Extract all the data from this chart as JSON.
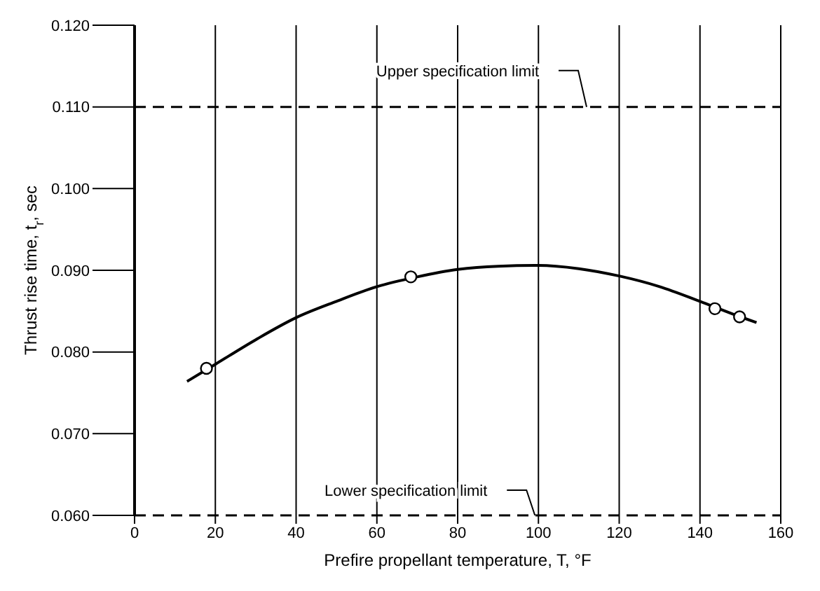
{
  "chart_data": {
    "type": "line",
    "xlabel": "Prefire propellant temperature, T, °F",
    "ylabel": "Thrust rise time, t$_{r}$, sec",
    "xlim": [
      0,
      160
    ],
    "xticks": [
      0,
      20,
      40,
      60,
      80,
      100,
      120,
      140,
      160
    ],
    "ylim": [
      0.06,
      0.12
    ],
    "yticks": [
      {
        "value": 0.06,
        "label": "0.060"
      },
      {
        "value": 0.07,
        "label": "0.070"
      },
      {
        "value": 0.08,
        "label": "0.080"
      },
      {
        "value": 0.09,
        "label": "0.090"
      },
      {
        "value": 0.1,
        "label": "0.100"
      },
      {
        "value": 0.11,
        "label": "0.110"
      },
      {
        "value": 0.12,
        "label": "0.120"
      }
    ],
    "grid": "x",
    "series": [
      {
        "color": "#000000",
        "marker": "none",
        "line_style": "solid",
        "x": [
          13,
          20,
          30,
          40,
          50,
          60,
          70,
          80,
          90,
          100,
          110,
          120,
          130,
          140,
          150,
          154
        ],
        "values": [
          0.0764,
          0.0785,
          0.0815,
          0.0842,
          0.0862,
          0.088,
          0.0892,
          0.0901,
          0.0905,
          0.0906,
          0.0902,
          0.0893,
          0.088,
          0.0862,
          0.0843,
          0.0836
        ]
      },
      {
        "type": "scatter",
        "color": "#000000",
        "marker": "circle",
        "x": [
          17.8,
          68.4,
          143.7,
          149.8
        ],
        "values": [
          0.078,
          0.0892,
          0.0853,
          0.0843
        ]
      }
    ],
    "ref_lines": [
      {
        "axis": "y",
        "value": 0.11,
        "label": "Upper specification limit",
        "color": "#000000",
        "line_style": "dashed"
      },
      {
        "axis": "y",
        "value": 0.06,
        "label": "Lower specification limit",
        "color": "#000000",
        "line_style": "dashed"
      }
    ]
  }
}
